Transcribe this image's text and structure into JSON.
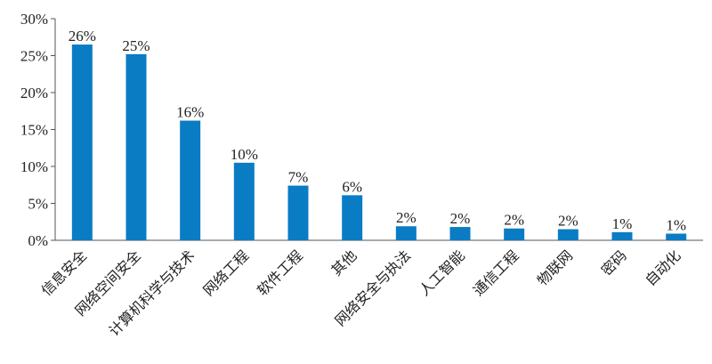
{
  "chart_data": {
    "type": "bar",
    "title": "",
    "xlabel": "",
    "ylabel": "",
    "categories": [
      "信息安全",
      "网络空间安全",
      "计算机科学与技术",
      "网络工程",
      "软件工程",
      "其他",
      "网络安全与执法",
      "人工智能",
      "通信工程",
      "物联网",
      "密码",
      "自动化"
    ],
    "values": [
      26.5,
      25.2,
      16.2,
      10.5,
      7.4,
      6.1,
      1.9,
      1.8,
      1.6,
      1.5,
      1.1,
      0.9
    ],
    "data_labels": [
      "26%",
      "25%",
      "16%",
      "10%",
      "7%",
      "6%",
      "2%",
      "2%",
      "2%",
      "2%",
      "1%",
      "1%"
    ],
    "yticks": [
      "0%",
      "5%",
      "10%",
      "15%",
      "20%",
      "25%",
      "30%"
    ],
    "ytick_values": [
      0,
      5,
      10,
      15,
      20,
      25,
      30
    ],
    "ylim": [
      0,
      30
    ],
    "grid": false,
    "legend": "none",
    "bar_color": "#0a7cc4",
    "axis_color": "#555555"
  }
}
